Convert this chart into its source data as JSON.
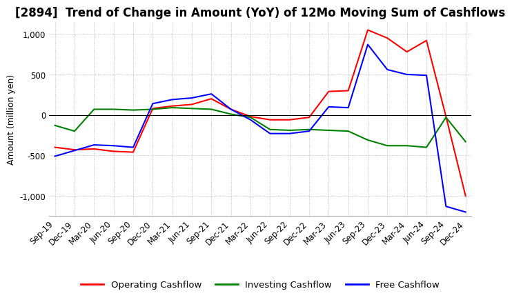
{
  "title": "[2894]  Trend of Change in Amount (YoY) of 12Mo Moving Sum of Cashflows",
  "ylabel": "Amount (million yen)",
  "ylim": [
    -1250,
    1150
  ],
  "yticks": [
    -1000,
    -500,
    0,
    500,
    1000
  ],
  "legend_labels": [
    "Operating Cashflow",
    "Investing Cashflow",
    "Free Cashflow"
  ],
  "legend_colors": [
    "#ff0000",
    "#008000",
    "#0000ff"
  ],
  "x_labels": [
    "Sep-19",
    "Dec-19",
    "Mar-20",
    "Jun-20",
    "Sep-20",
    "Dec-20",
    "Mar-21",
    "Jun-21",
    "Sep-21",
    "Dec-21",
    "Mar-22",
    "Jun-22",
    "Sep-22",
    "Dec-22",
    "Mar-23",
    "Jun-23",
    "Sep-23",
    "Dec-23",
    "Mar-24",
    "Jun-24",
    "Sep-24",
    "Dec-24"
  ],
  "operating": [
    -400,
    -430,
    -420,
    -450,
    -460,
    80,
    110,
    130,
    200,
    70,
    -20,
    -60,
    -60,
    -30,
    290,
    300,
    1050,
    950,
    780,
    920,
    -20,
    -1000
  ],
  "investing": [
    -130,
    -200,
    70,
    70,
    60,
    70,
    90,
    80,
    70,
    10,
    -30,
    -180,
    -190,
    -180,
    -190,
    -200,
    -310,
    -380,
    -380,
    -400,
    -30,
    -330
  ],
  "free": [
    -510,
    -440,
    -370,
    -380,
    -400,
    140,
    190,
    210,
    260,
    70,
    -60,
    -230,
    -230,
    -200,
    100,
    90,
    870,
    560,
    500,
    490,
    -1130,
    -1200
  ],
  "background_color": "#ffffff",
  "grid_color": "#aaaaaa",
  "title_fontsize": 12,
  "axis_fontsize": 9,
  "tick_fontsize": 8.5,
  "line_width": 1.5
}
